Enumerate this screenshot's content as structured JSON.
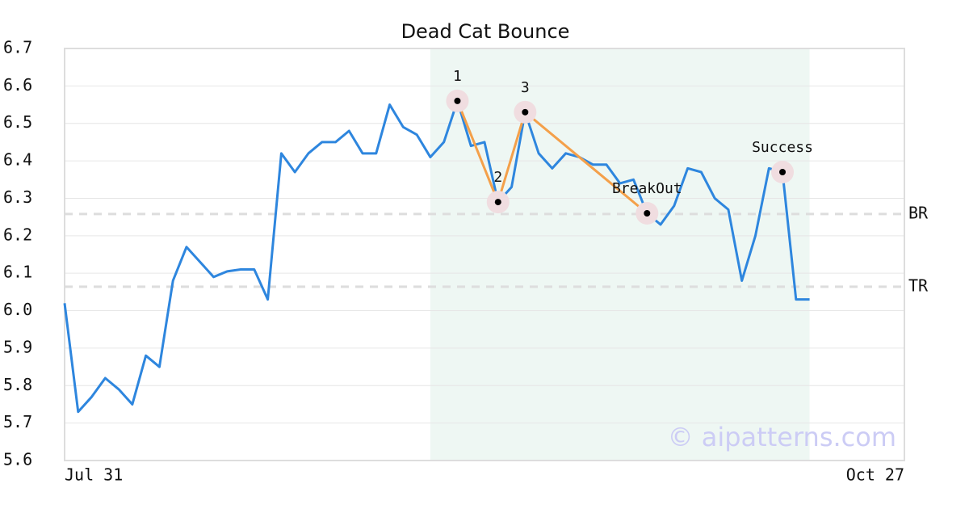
{
  "chart_data": {
    "type": "line",
    "title": "Dead Cat Bounce",
    "x": [
      0,
      1,
      2,
      3,
      4,
      5,
      6,
      7,
      8,
      9,
      10,
      11,
      12,
      13,
      14,
      15,
      16,
      17,
      18,
      19,
      20,
      21,
      22,
      23,
      24,
      25,
      26,
      27,
      28,
      29,
      30,
      31,
      32,
      33,
      34,
      35,
      36,
      37,
      38,
      39,
      40,
      41,
      42,
      43,
      44,
      45,
      46,
      47,
      48,
      49,
      50,
      51,
      52,
      53,
      54,
      55
    ],
    "series": [
      {
        "color": "#2e86de",
        "values": [
          6.02,
          5.73,
          5.77,
          5.82,
          5.79,
          5.75,
          5.88,
          5.85,
          6.08,
          6.17,
          6.13,
          6.09,
          6.105,
          6.11,
          6.11,
          6.03,
          6.42,
          6.37,
          6.42,
          6.45,
          6.45,
          6.48,
          6.42,
          6.42,
          6.55,
          6.49,
          6.47,
          6.41,
          6.45,
          6.56,
          6.44,
          6.45,
          6.29,
          6.33,
          6.53,
          6.42,
          6.38,
          6.42,
          6.41,
          6.39,
          6.39,
          6.34,
          6.35,
          6.26,
          6.23,
          6.28,
          6.38,
          6.37,
          6.3,
          6.27,
          6.08,
          6.2,
          6.38,
          6.37,
          6.03,
          6.03
        ]
      }
    ],
    "xlim": [
      0,
      62
    ],
    "xticks": [
      {
        "value": 0,
        "label": "Jul 31"
      },
      {
        "value": 62,
        "label": "Oct 27"
      }
    ],
    "ylim": [
      5.6,
      6.7
    ],
    "yticks": [
      5.6,
      5.7,
      5.8,
      5.9,
      {
        "value": 6,
        "label": "6.0"
      },
      6.1,
      6.2,
      6.3,
      6.4,
      6.5,
      6.6,
      6.7
    ],
    "grid": true,
    "highlight_range": [
      27,
      55
    ],
    "pattern_color": "#f4a04a",
    "annotations": [
      {
        "label": "1",
        "x": 29,
        "y": 6.56
      },
      {
        "label": "2",
        "x": 32,
        "y": 6.29
      },
      {
        "label": "3",
        "x": 34,
        "y": 6.53
      },
      {
        "label": "BreakOut",
        "x": 43,
        "y": 6.26
      },
      {
        "label": "Success",
        "x": 53,
        "y": 6.37
      }
    ],
    "hlines": [
      {
        "label": "BR",
        "value": 6.258
      },
      {
        "label": "TR",
        "value": 6.064
      }
    ],
    "watermark": "© aipatterns.com"
  }
}
